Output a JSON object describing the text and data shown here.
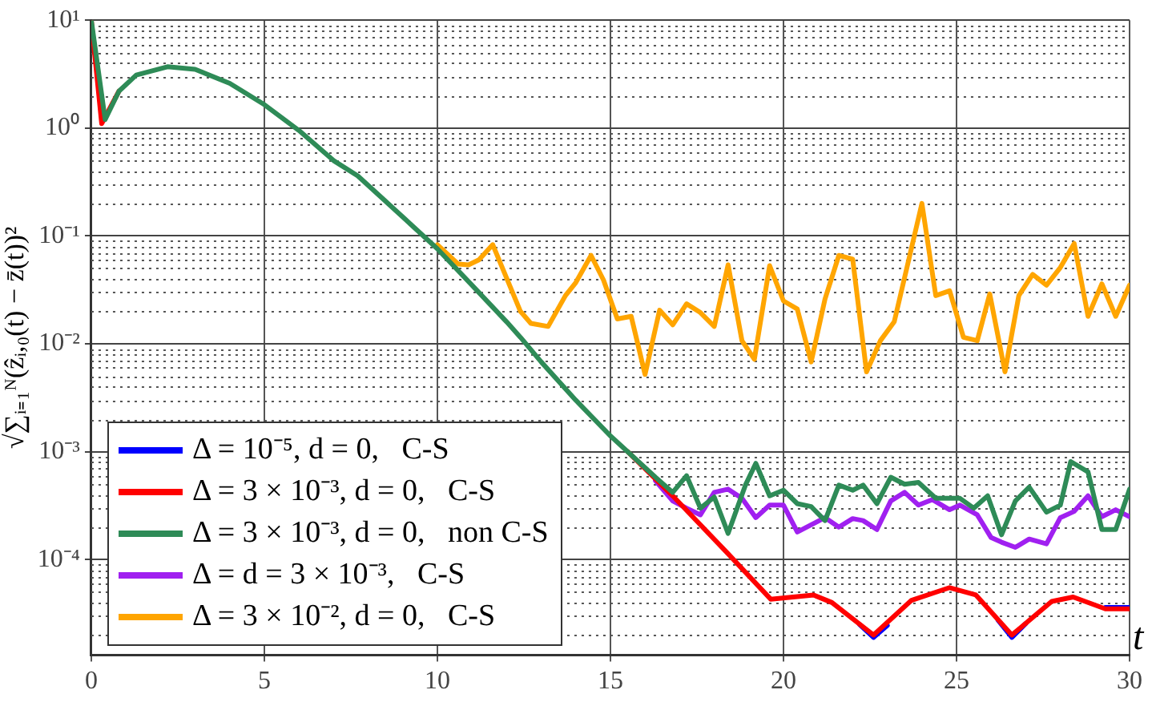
{
  "chart_data": {
    "type": "line",
    "xlabel": "t",
    "ylabel": "√∑ᵢ₌₁ᴺ(ẑᵢ,₀(t) − z̄(t))²",
    "xlim": [
      0,
      30
    ],
    "xticks": [
      0,
      5,
      10,
      15,
      20,
      25,
      30
    ],
    "ylim": [
      1.3e-05,
      10
    ],
    "yticks": [
      {
        "value": 10,
        "label": "10¹"
      },
      {
        "value": 1,
        "label": "10⁰"
      },
      {
        "value": 0.1,
        "label": "10⁻¹"
      },
      {
        "value": 0.01,
        "label": "10⁻²"
      },
      {
        "value": 0.001,
        "label": "10⁻³"
      },
      {
        "value": 0.0001,
        "label": "10⁻⁴"
      }
    ],
    "log": "y",
    "grid": true,
    "legend": "bottom left",
    "marker": "none",
    "line_style": "solid",
    "series": [
      {
        "name": "Δ = 10⁻⁵, d = 0,   C-S",
        "color": "#0000ff",
        "x": [
          22.2,
          22.6,
          23.0,
          24.8,
          26.2,
          26.6,
          27.0,
          28.5,
          29.3,
          30
        ],
        "values": [
          2.5e-05,
          1.9e-05,
          2.45e-05,
          null,
          2.75e-05,
          1.9e-05,
          2.55e-05,
          null,
          3.6e-05,
          3.6e-05
        ]
      },
      {
        "name": "Δ = 3 × 10⁻³, d = 0,   C-S",
        "color": "#ff0000",
        "x": [
          0,
          0.3,
          0.8,
          5,
          15.5,
          16.8,
          18.38,
          19.63,
          20.87,
          21.4,
          22.6,
          23.7,
          24.8,
          25.56,
          26.6,
          27.75,
          28.37,
          29.3,
          30
        ],
        "values": [
          10,
          1.1,
          2.2,
          null,
          0.001,
          0.00039,
          0.000115,
          4.3e-05,
          4.7e-05,
          4e-05,
          2e-05,
          4.2e-05,
          5.5e-05,
          4.7e-05,
          2e-05,
          4.1e-05,
          4.5e-05,
          3.5e-05,
          3.5e-05
        ]
      },
      {
        "name": "Δ = 3 × 10⁻³, d = 0,   non C-S",
        "color": "#2e8b57",
        "x": [
          0,
          0.4,
          0.8,
          1.3,
          2.2,
          3,
          4,
          5,
          6,
          7,
          7.7,
          8.5,
          9,
          10,
          11,
          12,
          12.4,
          13,
          14,
          15,
          15.5,
          16.3,
          16.8,
          17.2,
          17.6,
          18.0,
          18.4,
          18.9,
          19.2,
          19.6,
          20,
          20.4,
          20.8,
          21.2,
          21.6,
          22.0,
          22.3,
          22.7,
          23.1,
          23.5,
          23.9,
          24.4,
          25.1,
          25.5,
          25.9,
          26.3,
          26.7,
          27.1,
          27.6,
          28.0,
          28.3,
          28.8,
          29.2,
          29.6,
          30
        ],
        "values": [
          10,
          1.2,
          2.2,
          3.1,
          3.7,
          3.5,
          2.6,
          1.65,
          0.95,
          0.5,
          0.36,
          0.21,
          0.15,
          0.076,
          0.035,
          0.016,
          0.0115,
          0.0068,
          0.003,
          0.0014,
          0.001,
          0.00058,
          0.00042,
          0.0006,
          0.0003,
          0.00038,
          0.000175,
          0.00049,
          0.00078,
          0.00039,
          0.00044,
          0.00033,
          0.00031,
          0.00023,
          0.00049,
          0.00044,
          0.00049,
          0.00033,
          0.00058,
          0.0005,
          0.00052,
          0.00037,
          0.00037,
          0.0003,
          0.00039,
          0.00017,
          0.00035,
          0.00047,
          0.000275,
          0.00032,
          0.00081,
          0.00065,
          0.00019,
          0.00019,
          0.00045
        ]
      },
      {
        "name": "Δ = d = 3 × 10⁻³,   C-S",
        "color": "#a020f0",
        "x": [
          16.3,
          16.8,
          17.2,
          17.6,
          18.0,
          18.4,
          18.8,
          19.2,
          19.6,
          20,
          20.4,
          20.8,
          21.2,
          21.6,
          22.0,
          22.3,
          22.7,
          23.1,
          23.5,
          23.9,
          24.3,
          24.8,
          25.1,
          25.6,
          26.0,
          26.3,
          26.7,
          27.1,
          27.6,
          28.0,
          28.4,
          28.8,
          29.2,
          29.6,
          30
        ],
        "values": [
          0.00054,
          0.00035,
          0.0003,
          0.00026,
          0.00042,
          0.00045,
          0.00037,
          0.000245,
          0.00032,
          0.00032,
          0.00018,
          0.00021,
          0.000245,
          0.0002,
          0.00024,
          0.00023,
          0.00019,
          0.00035,
          0.00042,
          0.00032,
          0.00036,
          0.00029,
          0.00032,
          0.00026,
          0.00016,
          0.000145,
          0.00013,
          0.000155,
          0.00014,
          0.000245,
          0.00028,
          0.00039,
          0.00025,
          0.00029,
          0.00025
        ]
      },
      {
        "name": "Δ = 3 × 10⁻², d = 0,   C-S",
        "color": "#ffa500",
        "x": [
          10,
          10.6,
          10.9,
          11.2,
          11.6,
          12.4,
          12.7,
          13.2,
          13.7,
          14.0,
          14.44,
          14.8,
          15.2,
          15.6,
          16.0,
          16.42,
          16.8,
          17.2,
          17.6,
          18.0,
          18.4,
          18.8,
          19.16,
          19.6,
          20.0,
          20.4,
          20.8,
          21.2,
          21.6,
          22.0,
          22.4,
          22.8,
          23.2,
          24.0,
          24.4,
          24.8,
          25.2,
          25.6,
          25.96,
          26.4,
          26.8,
          27.2,
          27.6,
          28.0,
          28.4,
          28.8,
          29.2,
          29.6,
          30
        ],
        "values": [
          0.083,
          0.055,
          0.054,
          0.06,
          0.083,
          0.02,
          0.0155,
          0.0145,
          0.028,
          0.037,
          0.066,
          0.039,
          0.017,
          0.018,
          0.0052,
          0.0205,
          0.015,
          0.0235,
          0.0195,
          0.0145,
          0.054,
          0.0107,
          0.0072,
          0.053,
          0.025,
          0.021,
          0.0068,
          0.026,
          0.066,
          0.061,
          0.0055,
          0.0107,
          0.016,
          0.2,
          0.028,
          0.031,
          0.0115,
          0.0107,
          0.029,
          0.0055,
          0.028,
          0.044,
          0.035,
          0.051,
          0.085,
          0.018,
          0.036,
          0.018,
          0.035
        ]
      }
    ]
  }
}
